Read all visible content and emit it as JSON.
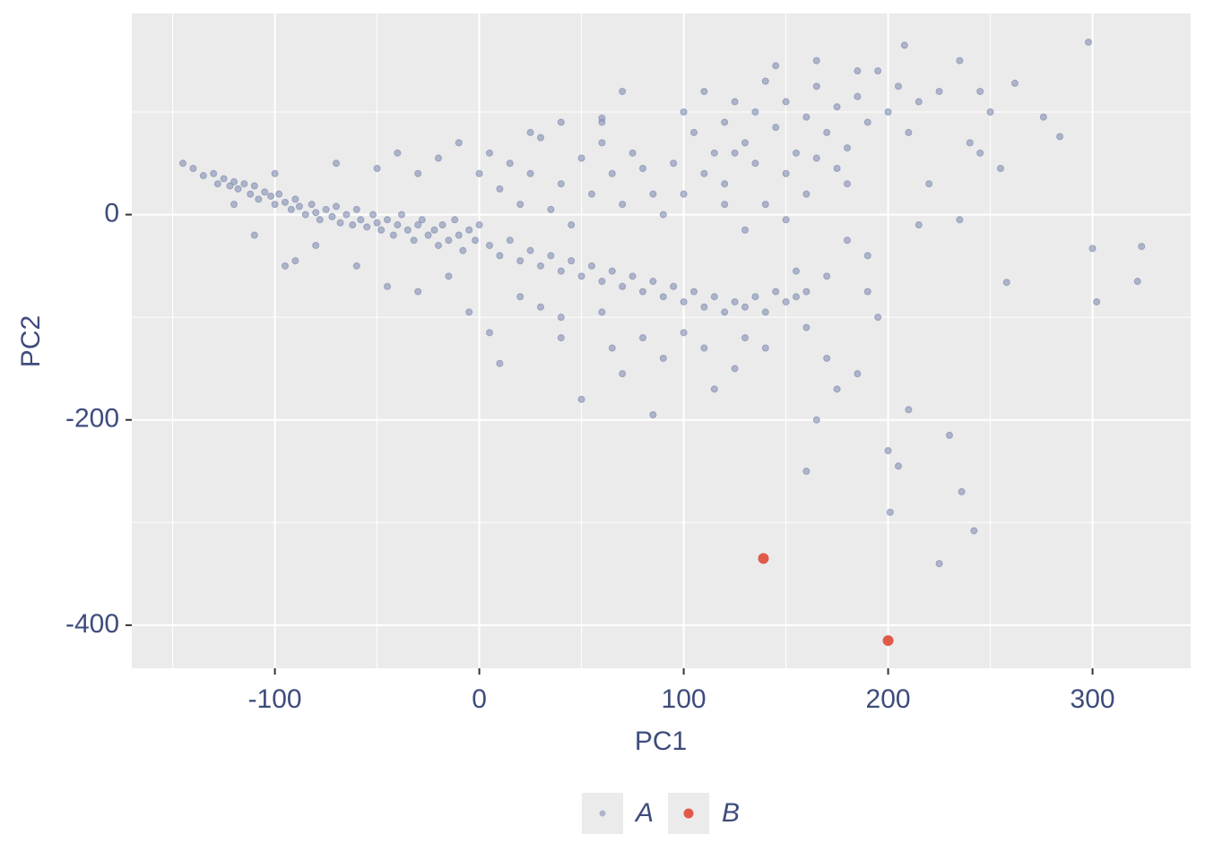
{
  "chart_data": {
    "type": "scatter",
    "xlabel": "PC1",
    "ylabel": "PC2",
    "xlim": [
      -170,
      348
    ],
    "ylim": [
      -442,
      196
    ],
    "xticks": [
      -100,
      0,
      100,
      200,
      300
    ],
    "yticks": [
      -400,
      -200,
      0
    ],
    "x_minor_ticks": [
      -150,
      -50,
      50,
      150,
      250
    ],
    "y_minor_ticks": [
      -300,
      -100,
      100
    ],
    "grid": true,
    "legend": "bottom",
    "series": [
      {
        "name": "A",
        "color": "#8390b3",
        "x": [
          -145,
          -140,
          -135,
          -130,
          -128,
          -125,
          -122,
          -120,
          -118,
          -115,
          -112,
          -110,
          -108,
          -105,
          -102,
          -100,
          -98,
          -95,
          -92,
          -90,
          -88,
          -85,
          -82,
          -80,
          -78,
          -75,
          -72,
          -70,
          -68,
          -65,
          -62,
          -60,
          -58,
          -55,
          -52,
          -50,
          -48,
          -45,
          -42,
          -40,
          -38,
          -35,
          -32,
          -30,
          -28,
          -25,
          -22,
          -20,
          -18,
          -15,
          -12,
          -10,
          -8,
          -5,
          -2,
          0,
          -100,
          -90,
          -80,
          -70,
          -60,
          -50,
          -40,
          -30,
          -20,
          -10,
          -45,
          -30,
          -15,
          -5,
          5,
          10,
          -95,
          -110,
          -120,
          5,
          15,
          25,
          30,
          40,
          50,
          55,
          60,
          65,
          75,
          70,
          80,
          85,
          45,
          35,
          20,
          10,
          0,
          25,
          40,
          60,
          90,
          5,
          10,
          15,
          20,
          25,
          30,
          35,
          40,
          45,
          50,
          55,
          60,
          65,
          70,
          75,
          80,
          85,
          90,
          95,
          100,
          105,
          110,
          115,
          120,
          125,
          130,
          135,
          140,
          145,
          150,
          155,
          160,
          20,
          30,
          40,
          60,
          80,
          90,
          85,
          100,
          110,
          115,
          125,
          130,
          140,
          160,
          170,
          175,
          185,
          165,
          160,
          50,
          70,
          195,
          200,
          210,
          205,
          201,
          225,
          230,
          236,
          242,
          155,
          170,
          190,
          40,
          65,
          100,
          105,
          110,
          115,
          120,
          125,
          130,
          135,
          140,
          145,
          150,
          155,
          160,
          165,
          170,
          175,
          180,
          185,
          190,
          195,
          200,
          205,
          210,
          215,
          125,
          135,
          150,
          165,
          175,
          180,
          160,
          140,
          120,
          110,
          145,
          165,
          185,
          225,
          235,
          245,
          262,
          276,
          284,
          298,
          208,
          250,
          240,
          255,
          220,
          235,
          245,
          300,
          302,
          322,
          324,
          258,
          215,
          180,
          190,
          130,
          150,
          120,
          100,
          95,
          70,
          60
        ],
        "values": [
          50,
          45,
          38,
          40,
          30,
          35,
          28,
          32,
          25,
          30,
          20,
          28,
          15,
          22,
          18,
          10,
          20,
          12,
          5,
          15,
          8,
          0,
          10,
          2,
          -5,
          5,
          -2,
          8,
          -8,
          0,
          -10,
          5,
          -5,
          -12,
          0,
          -8,
          -15,
          -5,
          -20,
          -10,
          0,
          -15,
          -25,
          -10,
          -5,
          -20,
          -15,
          -30,
          -10,
          -25,
          -5,
          -20,
          -35,
          -15,
          -25,
          -10,
          40,
          -45,
          -30,
          50,
          -50,
          45,
          60,
          40,
          55,
          70,
          -70,
          -75,
          -60,
          -95,
          -115,
          -145,
          -50,
          -20,
          10,
          60,
          50,
          40,
          75,
          30,
          55,
          20,
          70,
          40,
          60,
          10,
          45,
          20,
          -10,
          5,
          10,
          25,
          40,
          80,
          90,
          90,
          0,
          -30,
          -40,
          -25,
          -45,
          -35,
          -50,
          -40,
          -55,
          -45,
          -60,
          -50,
          -65,
          -55,
          -70,
          -60,
          -75,
          -65,
          -80,
          -70,
          -85,
          -75,
          -90,
          -80,
          -95,
          -85,
          -90,
          -80,
          -95,
          -75,
          -85,
          -80,
          -75,
          -80,
          -90,
          -100,
          -95,
          -120,
          -140,
          -195,
          -115,
          -130,
          -170,
          -150,
          -120,
          -130,
          -110,
          -140,
          -170,
          -155,
          -200,
          -250,
          -180,
          -155,
          -100,
          -230,
          -190,
          -245,
          -290,
          -340,
          -215,
          -270,
          -308,
          -55,
          -60,
          -75,
          -120,
          -130,
          100,
          80,
          120,
          60,
          90,
          110,
          70,
          100,
          130,
          85,
          110,
          60,
          95,
          125,
          80,
          105,
          65,
          115,
          90,
          140,
          100,
          125,
          80,
          110,
          60,
          50,
          40,
          55,
          45,
          30,
          20,
          10,
          30,
          40,
          145,
          150,
          140,
          120,
          150,
          120,
          128,
          95,
          76,
          168,
          165,
          100,
          70,
          45,
          30,
          -5,
          60,
          -33,
          -85,
          -65,
          -31,
          -66,
          -10,
          -25,
          -40,
          -15,
          -5,
          10,
          20,
          50,
          120,
          94
        ]
      },
      {
        "name": "B",
        "color": "#e05a47",
        "x": [
          139,
          200
        ],
        "values": [
          -335,
          -415
        ]
      }
    ]
  }
}
